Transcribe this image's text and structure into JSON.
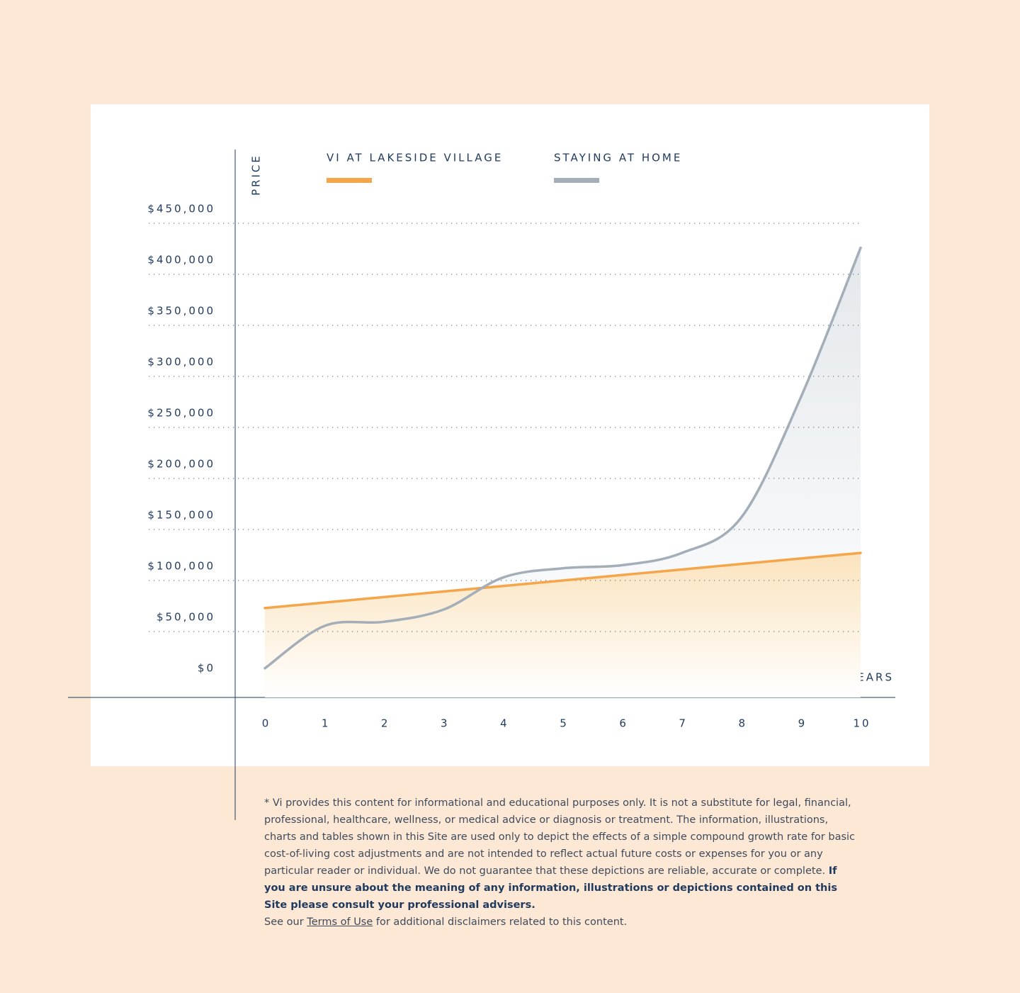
{
  "chart_data": {
    "type": "line",
    "x_label": "YEARS",
    "y_label": "PRICE",
    "x": [
      0,
      1,
      2,
      3,
      4,
      5,
      6,
      7,
      8,
      9,
      10
    ],
    "xlim": [
      0,
      10
    ],
    "xticks": [
      0,
      1,
      2,
      3,
      4,
      5,
      6,
      7,
      8,
      9,
      10
    ],
    "ylim": [
      0,
      450000
    ],
    "yticks": [
      {
        "value": 0,
        "label": "$0"
      },
      {
        "value": 50000,
        "label": "$50,000"
      },
      {
        "value": 100000,
        "label": "$100,000"
      },
      {
        "value": 150000,
        "label": "$150,000"
      },
      {
        "value": 200000,
        "label": "$200,000"
      },
      {
        "value": 250000,
        "label": "$250,000"
      },
      {
        "value": 300000,
        "label": "$300,000"
      },
      {
        "value": 350000,
        "label": "$350,000"
      },
      {
        "value": 400000,
        "label": "$400,000"
      },
      {
        "value": 450000,
        "label": "$450,000"
      }
    ],
    "grid": true,
    "series": [
      {
        "name": "VI AT LAKESIDE VILLAGE",
        "color": "#f5a54a",
        "values": [
          73000,
          78400,
          83800,
          89200,
          94600,
          100000,
          105400,
          110800,
          116200,
          121600,
          127000
        ]
      },
      {
        "name": "STAYING AT HOME",
        "color": "#a3aeb8",
        "values": [
          14000,
          55500,
          59500,
          71500,
          103000,
          112000,
          115000,
          127000,
          162000,
          280000,
          426000
        ]
      }
    ]
  },
  "footnote": {
    "text": "* Vi provides this content for informational and educational purposes only. It is not a substitute for legal, financial, professional, healthcare, wellness, or medical advice or diagnosis or treatment. The information, illustrations, charts and tables shown in this Site are used only to depict the effects of a simple compound growth rate for basic cost-of-living cost adjustments and are not intended to reflect actual future costs or expenses for you or any particular reader or individual. We do not guarantee that these depictions are reliable, accurate or complete.",
    "bold": "If you are unsure about the meaning of any information, illustrations or depictions contained on this Site please consult your professional advisers.",
    "see_prefix": "See our",
    "link": "Terms of Use",
    "see_suffix": "for additional disclaimers related to this content."
  }
}
